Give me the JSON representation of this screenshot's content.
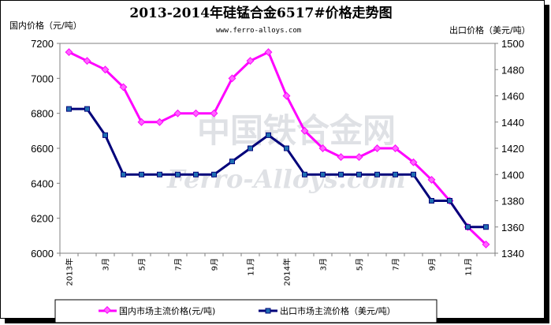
{
  "chart_data": {
    "type": "line",
    "title": "2013-2014年硅锰合金6517#价格走势图",
    "subtitle": "www.ferro-alloys.com",
    "left_axis_label": "国内价格（元/吨）",
    "right_axis_label": "出口价格（美元/吨）",
    "watermark_cn": "中国铁合金网",
    "watermark_en": "Ferro-Alloys.com",
    "x_tick_labels": [
      "2013年",
      "3月",
      "5月",
      "7月",
      "9月",
      "11月",
      "2014年",
      "3月",
      "5月",
      "7月",
      "9月",
      "11月"
    ],
    "left_ylim": [
      6000,
      7200
    ],
    "left_ticks": [
      "6000",
      "6200",
      "6400",
      "6600",
      "6800",
      "7000",
      "7200"
    ],
    "right_ylim": [
      1340,
      1500
    ],
    "right_ticks": [
      "1340",
      "1360",
      "1380",
      "1400",
      "1420",
      "1440",
      "1460",
      "1480",
      "1500"
    ],
    "grid": false,
    "legend_position": "bottom",
    "series": [
      {
        "name": "国内市场主流价格(元/吨)",
        "axis": "left",
        "color": "#ff00ff",
        "marker": "diamond",
        "values": [
          7150,
          7100,
          7050,
          6950,
          6750,
          6750,
          6800,
          6800,
          6800,
          7000,
          7100,
          7150,
          6900,
          6700,
          6600,
          6550,
          6550,
          6600,
          6600,
          6520,
          6420,
          6300,
          6150,
          6050
        ]
      },
      {
        "name": "出口市场主流价格（美元/吨）",
        "axis": "right",
        "color": "#00007a",
        "marker": "square",
        "values": [
          1450,
          1450,
          1430,
          1400,
          1400,
          1400,
          1400,
          1400,
          1400,
          1410,
          1420,
          1430,
          1420,
          1400,
          1400,
          1400,
          1400,
          1400,
          1400,
          1400,
          1380,
          1380,
          1360,
          1360
        ]
      }
    ]
  }
}
